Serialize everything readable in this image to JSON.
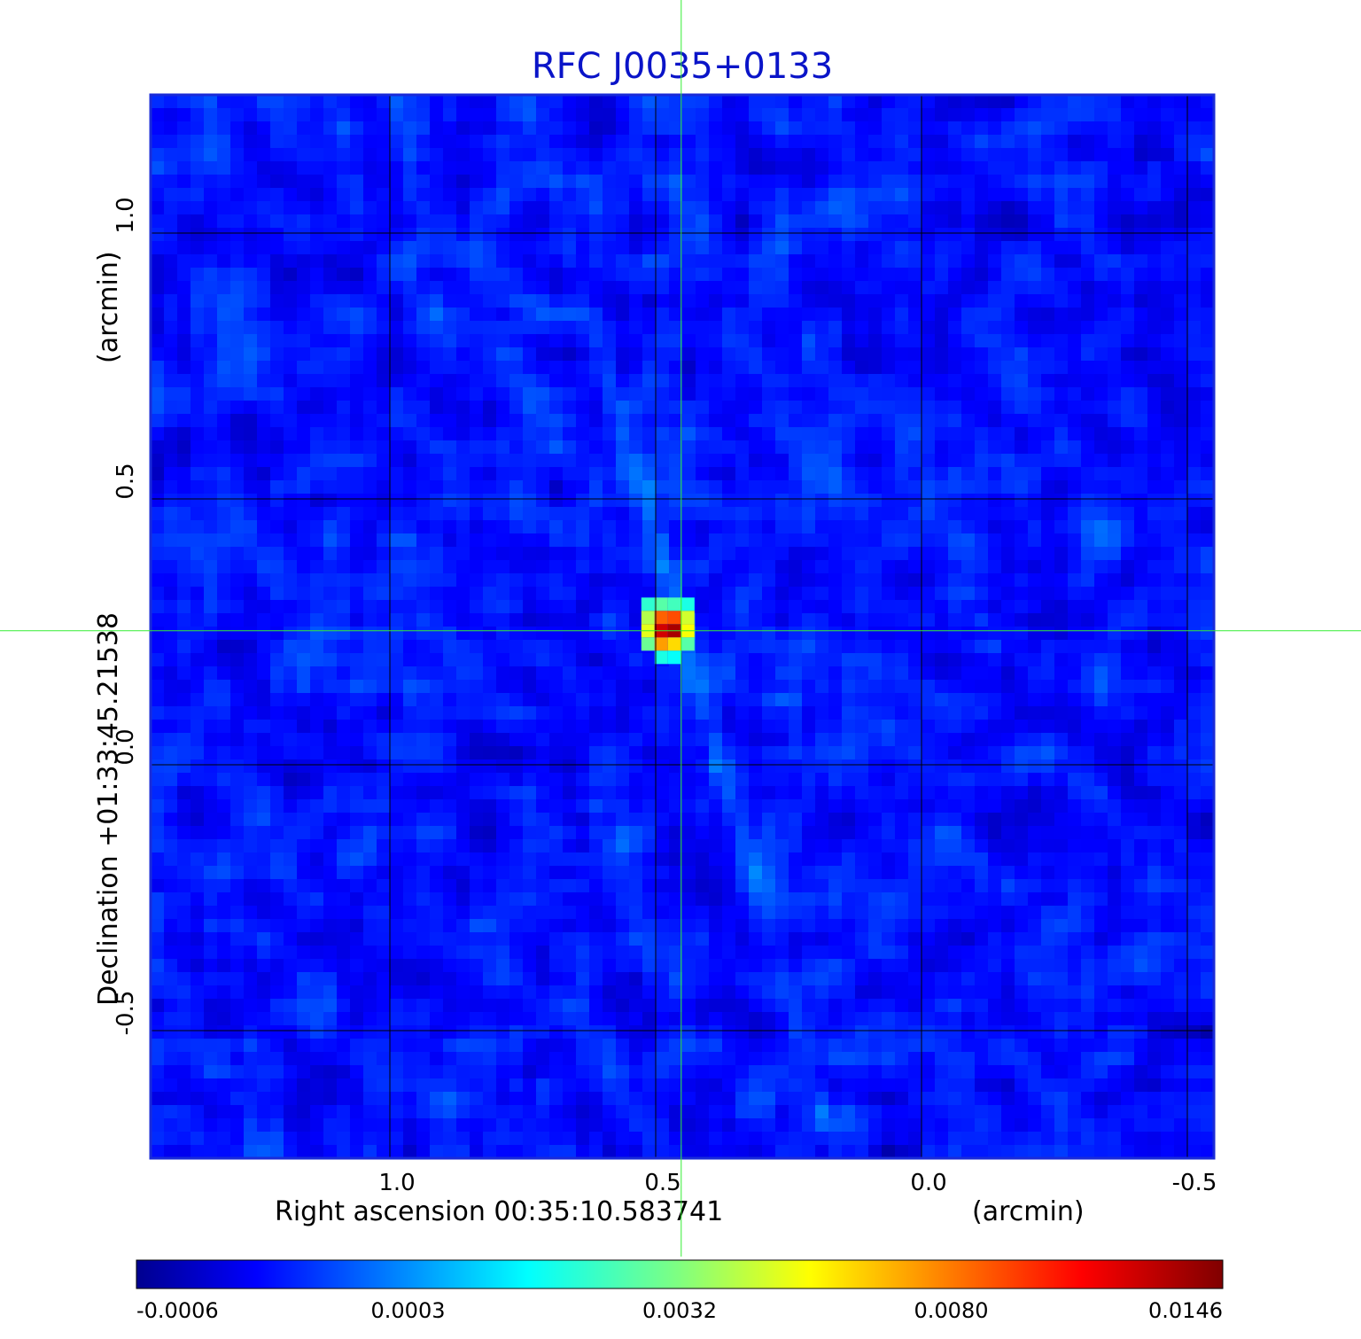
{
  "chart_data": {
    "type": "heatmap",
    "title": "RFC J0035+0133",
    "xlabel": "Right ascension  00:35:10.583741",
    "xunit": "(arcmin)",
    "ylabel": "Declination  +01:33:45.21538",
    "yunit": "(arcmin)",
    "xlim": [
      1.45,
      -0.55
    ],
    "ylim": [
      -0.74,
      1.26
    ],
    "x_ticks": [
      {
        "value": 1.0,
        "label": "1.0"
      },
      {
        "value": 0.5,
        "label": "0.5"
      },
      {
        "value": 0.0,
        "label": "0.0"
      },
      {
        "value": -0.5,
        "label": "-0.5"
      }
    ],
    "y_ticks": [
      {
        "value": 1.0,
        "label": "1.0"
      },
      {
        "value": 0.5,
        "label": "0.5"
      },
      {
        "value": 0.0,
        "label": "0.0"
      },
      {
        "value": -0.5,
        "label": "-0.5"
      }
    ],
    "grid": true,
    "crosshair": {
      "x": 0.452,
      "y": 0.252
    },
    "peak": {
      "x": 0.452,
      "y": 0.252,
      "value": 0.0146
    },
    "colorbar": {
      "colormap": "jet",
      "ticks": [
        "-0.0006",
        "0.0003",
        "0.0032",
        "0.0080",
        "0.0146"
      ]
    },
    "colors": {
      "title": "#0a14c8",
      "frame": "#1a2bd8",
      "grid": "#000000",
      "crosshair": "#33ee33"
    }
  }
}
